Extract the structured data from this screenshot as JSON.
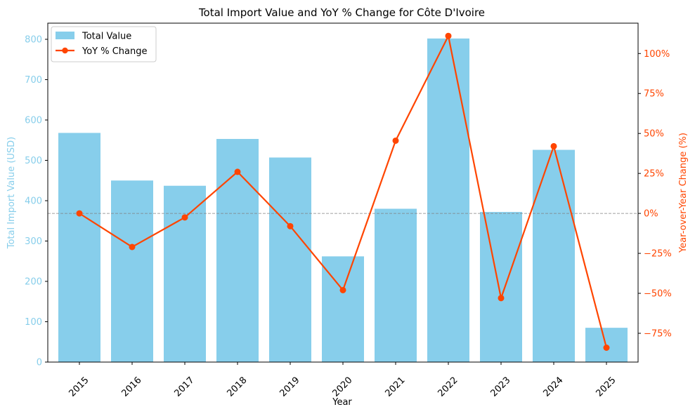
{
  "chart_data": {
    "type": "bar+line",
    "title": "Total Import Value and YoY % Change for Côte D'Ivoire",
    "xlabel": "Year",
    "ylabel_left": "Total Import Value (USD)",
    "ylabel_right": "Year-over-Year Change (%)",
    "categories": [
      "2015",
      "2016",
      "2017",
      "2018",
      "2019",
      "2020",
      "2021",
      "2022",
      "2023",
      "2024",
      "2025"
    ],
    "y_left": {
      "min": 0,
      "max": 840,
      "ticks": [
        0,
        100,
        200,
        300,
        400,
        500,
        600,
        700,
        800
      ]
    },
    "y_right": {
      "min": -93,
      "max": 119,
      "ticks": [
        -75,
        -50,
        -25,
        0,
        25,
        50,
        75,
        100
      ],
      "tick_labels": [
        "−75%",
        "−50%",
        "−25%",
        "0%",
        "25%",
        "50%",
        "75%",
        "100%"
      ]
    },
    "series": [
      {
        "name": "Total Value",
        "type": "bar",
        "axis": "left",
        "color": "#87ceeb",
        "values": [
          568,
          450,
          437,
          553,
          507,
          262,
          380,
          802,
          372,
          526,
          85
        ]
      },
      {
        "name": "YoY % Change",
        "type": "line",
        "axis": "right",
        "color": "#ff4500",
        "values": [
          0,
          -21,
          -2.5,
          26,
          -8,
          -48,
          45.5,
          111,
          -53,
          42,
          -84
        ]
      }
    ],
    "reference_line": {
      "axis": "right",
      "value": 0,
      "style": "dashed",
      "color": "#808080"
    },
    "legend": {
      "position": "top-left"
    },
    "grid": false,
    "colors": {
      "left_axis": "#87ceeb",
      "right_axis": "#ff4500",
      "text": "#000000"
    }
  }
}
